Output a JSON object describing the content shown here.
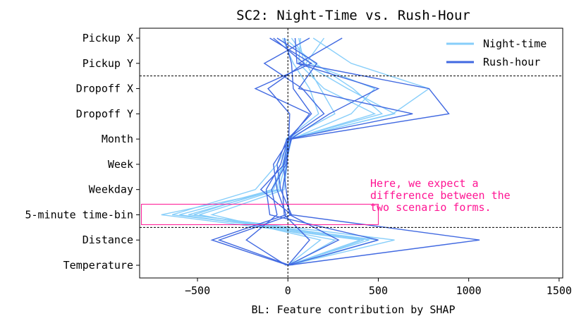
{
  "chart_data": {
    "type": "line",
    "title": "SC2: Night-Time vs. Rush-Hour",
    "xlabel": "BL: Feature contribution by SHAP",
    "ylabel": "",
    "xlim": [
      -820,
      1520
    ],
    "x_ticks": [
      -500,
      0,
      500,
      1000,
      1500
    ],
    "x_tick_labels": [
      "−500",
      "0",
      "500",
      "1000",
      "1500"
    ],
    "categories": [
      "Pickup X",
      "Pickup Y",
      "Dropoff X",
      "Dropoff Y",
      "Month",
      "Week",
      "Weekday",
      "5-minute time-bin",
      "Distance",
      "Temperature"
    ],
    "grid": false,
    "legend_position": "top-right",
    "legend": [
      {
        "name": "Night-time",
        "color": "#87CEFA"
      },
      {
        "name": "Rush-hour",
        "color": "#4169E1"
      }
    ],
    "reference_lines": {
      "vertical_x": 0,
      "horizontal_between": [
        [
          1,
          2
        ],
        [
          7,
          8
        ]
      ]
    },
    "annotation": {
      "lines": [
        "Here, we expect a",
        "difference between the",
        "two scenario forms."
      ],
      "color": "#FF1493",
      "box_x_range": [
        -810,
        500
      ],
      "box_category": "5-minute time-bin"
    },
    "series": [
      {
        "group": "Night-time",
        "color": "#87CEFA",
        "values": [
          20,
          120,
          480,
          350,
          20,
          -10,
          -30,
          -700,
          400,
          0
        ]
      },
      {
        "group": "Night-time",
        "color": "#87CEFA",
        "values": [
          60,
          90,
          330,
          590,
          10,
          -20,
          -80,
          -600,
          420,
          10
        ]
      },
      {
        "group": "Night-time",
        "color": "#87CEFA",
        "values": [
          -20,
          150,
          360,
          520,
          5,
          -30,
          -60,
          -550,
          590,
          0
        ]
      },
      {
        "group": "Night-time",
        "color": "#87CEFA",
        "values": [
          140,
          350,
          780,
          580,
          20,
          -60,
          -180,
          -640,
          500,
          20
        ]
      },
      {
        "group": "Night-time",
        "color": "#87CEFA",
        "values": [
          70,
          60,
          200,
          480,
          15,
          -25,
          -90,
          -520,
          450,
          -10
        ]
      },
      {
        "group": "Night-time",
        "color": "#87CEFA",
        "values": [
          200,
          100,
          180,
          260,
          0,
          -15,
          -50,
          -490,
          260,
          10
        ]
      },
      {
        "group": "Night-time",
        "color": "#87CEFA",
        "values": [
          -30,
          30,
          120,
          170,
          -10,
          -5,
          -20,
          -420,
          180,
          0
        ]
      },
      {
        "group": "Rush-hour",
        "color": "#4169E1",
        "values": [
          300,
          60,
          780,
          890,
          20,
          -20,
          -150,
          20,
          1060,
          0
        ]
      },
      {
        "group": "Rush-hour",
        "color": "#4169E1",
        "values": [
          -100,
          130,
          -180,
          120,
          10,
          -80,
          -60,
          -10,
          -420,
          0
        ]
      },
      {
        "group": "Rush-hour",
        "color": "#4169E1",
        "values": [
          120,
          -130,
          80,
          200,
          -5,
          -60,
          -40,
          20,
          -380,
          10
        ]
      },
      {
        "group": "Rush-hour",
        "color": "#4169E1",
        "values": [
          -60,
          160,
          60,
          690,
          0,
          -40,
          -120,
          -100,
          500,
          0
        ]
      },
      {
        "group": "Rush-hour",
        "color": "#4169E1",
        "values": [
          40,
          50,
          500,
          230,
          15,
          -10,
          -90,
          -60,
          -230,
          -10
        ]
      },
      {
        "group": "Rush-hour",
        "color": "#4169E1",
        "values": [
          -20,
          20,
          30,
          130,
          0,
          -5,
          -30,
          -20,
          120,
          0
        ]
      },
      {
        "group": "Rush-hour",
        "color": "#4169E1",
        "values": [
          -80,
          90,
          -110,
          10,
          5,
          -25,
          -10,
          10,
          280,
          0
        ]
      }
    ]
  }
}
